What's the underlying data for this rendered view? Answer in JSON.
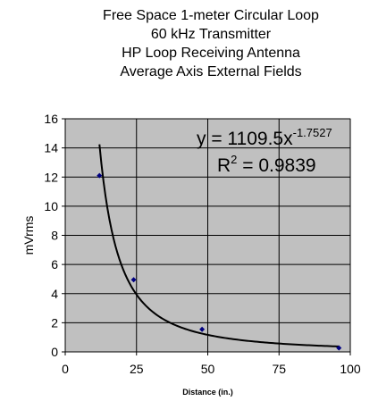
{
  "chart_data": {
    "type": "scatter",
    "title_lines": [
      "Free Space 1-meter Circular Loop",
      "60 kHz Transmitter",
      "HP Loop Receiving Antenna",
      "Average Axis External Fields"
    ],
    "xlabel": "Distance (in.)",
    "ylabel": "mVrms",
    "xlim": [
      0,
      100
    ],
    "ylim": [
      0,
      16
    ],
    "x_ticks": [
      0,
      25,
      50,
      75,
      100
    ],
    "y_ticks": [
      0,
      2,
      4,
      6,
      8,
      10,
      12,
      14,
      16
    ],
    "grid": true,
    "plot_background": "#c0c0c0",
    "series": [
      {
        "x": [
          12,
          24,
          48,
          96
        ],
        "y": [
          12.1,
          4.95,
          1.55,
          0.27
        ],
        "marker_color": "#000080"
      }
    ],
    "trendline": {
      "type": "power",
      "coefficient": 1109.5,
      "exponent": -1.7527,
      "x_range": [
        12,
        96
      ],
      "equation_base": "y = 1109.5x",
      "equation_exponent": "-1.7527",
      "r_squared_prefix": "R",
      "r_squared_power": "2",
      "r_squared_value": " = 0.9839"
    }
  }
}
